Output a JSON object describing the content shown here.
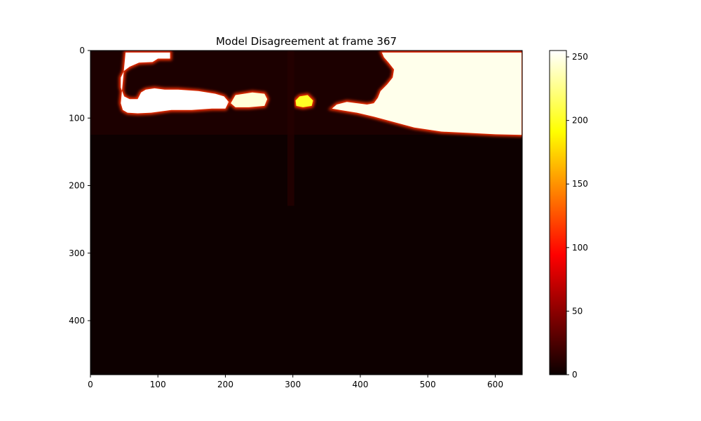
{
  "chart_data": {
    "type": "heatmap",
    "title": "Model Disagreement at frame 367",
    "xlabel": "",
    "ylabel": "",
    "xlim": [
      0,
      640
    ],
    "ylim": [
      480,
      0
    ],
    "x_ticks": [
      0,
      100,
      200,
      300,
      400,
      500,
      600
    ],
    "y_ticks": [
      0,
      100,
      200,
      300,
      400
    ],
    "colormap": "hot",
    "colorbar": {
      "vmin": 0,
      "vmax": 255,
      "ticks": [
        0,
        50,
        100,
        150,
        200,
        250
      ]
    },
    "grid": false,
    "regions": [
      {
        "value": 255,
        "points": [
          [
            52,
            3
          ],
          [
            118,
            3
          ],
          [
            118,
            12
          ],
          [
            100,
            12
          ],
          [
            92,
            17
          ],
          [
            72,
            18
          ],
          [
            58,
            24
          ],
          [
            50,
            30
          ],
          [
            45,
            40
          ],
          [
            45,
            55
          ],
          [
            50,
            68
          ],
          [
            58,
            72
          ],
          [
            70,
            72
          ],
          [
            75,
            62
          ],
          [
            82,
            58
          ],
          [
            95,
            56
          ],
          [
            110,
            58
          ],
          [
            130,
            58
          ],
          [
            160,
            60
          ],
          [
            185,
            64
          ],
          [
            198,
            68
          ],
          [
            205,
            76
          ],
          [
            200,
            86
          ],
          [
            180,
            86
          ],
          [
            150,
            88
          ],
          [
            120,
            88
          ],
          [
            90,
            92
          ],
          [
            70,
            93
          ],
          [
            55,
            92
          ],
          [
            48,
            88
          ],
          [
            45,
            78
          ]
        ]
      },
      {
        "value": 250,
        "points": [
          [
            432,
            3
          ],
          [
            614,
            3
          ],
          [
            639,
            3
          ],
          [
            639,
            125
          ],
          [
            600,
            124
          ],
          [
            560,
            122
          ],
          [
            520,
            120
          ],
          [
            480,
            114
          ],
          [
            450,
            106
          ],
          [
            420,
            98
          ],
          [
            395,
            92
          ],
          [
            370,
            88
          ],
          [
            358,
            86
          ],
          [
            365,
            80
          ],
          [
            380,
            76
          ],
          [
            395,
            78
          ],
          [
            410,
            80
          ],
          [
            420,
            78
          ],
          [
            426,
            70
          ],
          [
            430,
            60
          ],
          [
            440,
            50
          ],
          [
            448,
            40
          ],
          [
            450,
            28
          ],
          [
            442,
            18
          ],
          [
            435,
            10
          ]
        ]
      },
      {
        "value": 245,
        "points": [
          [
            215,
            66
          ],
          [
            240,
            62
          ],
          [
            258,
            64
          ],
          [
            262,
            72
          ],
          [
            258,
            82
          ],
          [
            235,
            84
          ],
          [
            215,
            84
          ],
          [
            208,
            78
          ]
        ]
      },
      {
        "value": 200,
        "points": [
          [
            310,
            68
          ],
          [
            322,
            66
          ],
          [
            330,
            74
          ],
          [
            328,
            82
          ],
          [
            315,
            84
          ],
          [
            305,
            82
          ],
          [
            304,
            74
          ]
        ]
      }
    ],
    "vertical_band": {
      "x": [
        292,
        302
      ],
      "value": 10
    }
  }
}
